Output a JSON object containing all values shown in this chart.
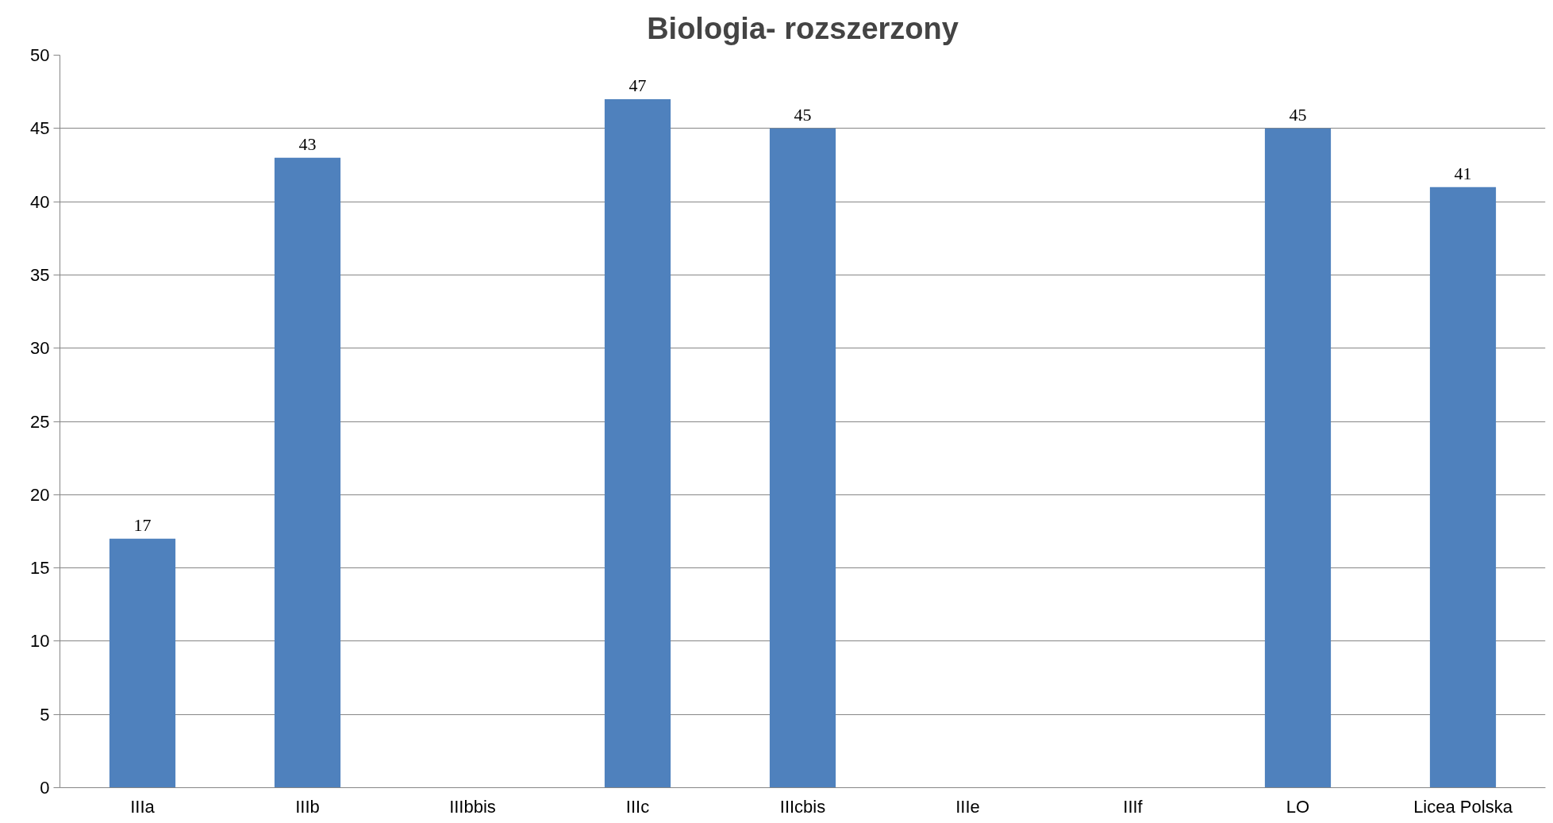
{
  "chart_data": {
    "type": "bar",
    "title": "Biologia- rozszerzony",
    "categories": [
      "IIIa",
      "IIIb",
      "IIIbbis",
      "IIIc",
      "IIIcbis",
      "IIIe",
      "IIIf",
      "LO",
      "Licea Polska"
    ],
    "values": [
      17,
      43,
      null,
      47,
      45,
      null,
      null,
      45,
      41
    ],
    "color": "#4f81bd",
    "ylim": [
      0,
      50
    ],
    "yticks": [
      0,
      5,
      10,
      15,
      20,
      25,
      30,
      35,
      40,
      45,
      50
    ],
    "grid": "y",
    "data_labels": true
  }
}
